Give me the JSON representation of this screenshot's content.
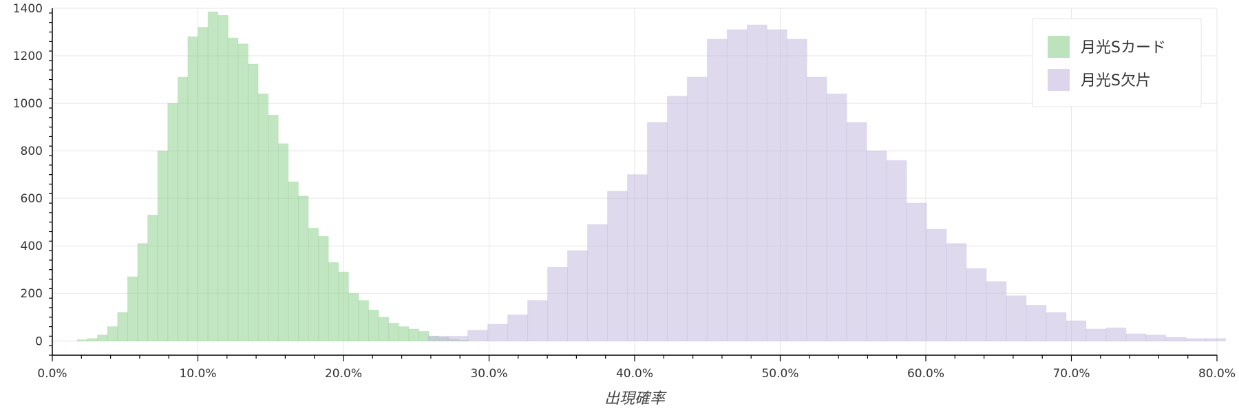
{
  "chart_data": {
    "type": "bar",
    "xlabel": "出現確率",
    "ylabel": "",
    "xlim": [
      0,
      80
    ],
    "ylim": [
      -60,
      1400
    ],
    "x_tick_values": [
      0,
      10,
      20,
      30,
      40,
      50,
      60,
      70,
      80
    ],
    "x_tick_labels": [
      "0.0%",
      "10.0%",
      "20.0%",
      "30.0%",
      "40.0%",
      "50.0%",
      "60.0%",
      "70.0%",
      "80.0%"
    ],
    "y_tick_values": [
      0,
      200,
      400,
      600,
      800,
      1000,
      1200,
      1400
    ],
    "y_tick_labels": [
      "0",
      "200",
      "400",
      "600",
      "800",
      "1000",
      "1200",
      "1400"
    ],
    "grid": true,
    "legend_position": "top-right",
    "series": [
      {
        "name": "月光Sカード",
        "color": "#8fd18f",
        "opacity": 0.55,
        "bin_width": 0.69,
        "bin_starts": [
          1.72,
          2.41,
          3.1,
          3.79,
          4.48,
          5.17,
          5.86,
          6.55,
          7.24,
          7.93,
          8.62,
          9.31,
          10.0,
          10.69,
          11.38,
          12.07,
          12.76,
          13.45,
          14.14,
          14.83,
          15.52,
          16.21,
          16.9,
          17.59,
          18.28,
          18.97,
          19.66,
          20.35,
          21.04,
          21.73,
          22.42,
          23.11,
          23.8,
          24.49,
          25.18,
          25.87,
          26.56,
          27.25,
          27.94
        ],
        "values": [
          5,
          10,
          25,
          60,
          120,
          270,
          410,
          530,
          800,
          1000,
          1110,
          1280,
          1320,
          1385,
          1370,
          1275,
          1250,
          1165,
          1040,
          950,
          830,
          670,
          610,
          475,
          440,
          330,
          290,
          200,
          170,
          130,
          100,
          75,
          60,
          50,
          40,
          20,
          15,
          8,
          3
        ]
      },
      {
        "name": "月光S欠片",
        "color": "#c5b9de",
        "opacity": 0.55,
        "bin_width": 1.37,
        "bin_starts": [
          25.8,
          27.17,
          28.54,
          29.91,
          31.28,
          32.65,
          34.02,
          35.39,
          36.76,
          38.13,
          39.5,
          40.87,
          42.24,
          43.61,
          44.98,
          46.35,
          47.72,
          49.09,
          50.46,
          51.83,
          53.2,
          54.57,
          55.94,
          57.31,
          58.68,
          60.05,
          61.42,
          62.79,
          64.16,
          65.53,
          66.9,
          68.27,
          69.64,
          71.01,
          72.38,
          73.75,
          75.12,
          76.49,
          77.86,
          79.23
        ],
        "values": [
          20,
          20,
          45,
          70,
          110,
          170,
          310,
          380,
          490,
          630,
          700,
          920,
          1030,
          1110,
          1270,
          1310,
          1330,
          1310,
          1270,
          1110,
          1040,
          920,
          800,
          760,
          580,
          470,
          410,
          305,
          250,
          190,
          150,
          120,
          85,
          50,
          55,
          30,
          25,
          15,
          10,
          10
        ]
      }
    ]
  }
}
